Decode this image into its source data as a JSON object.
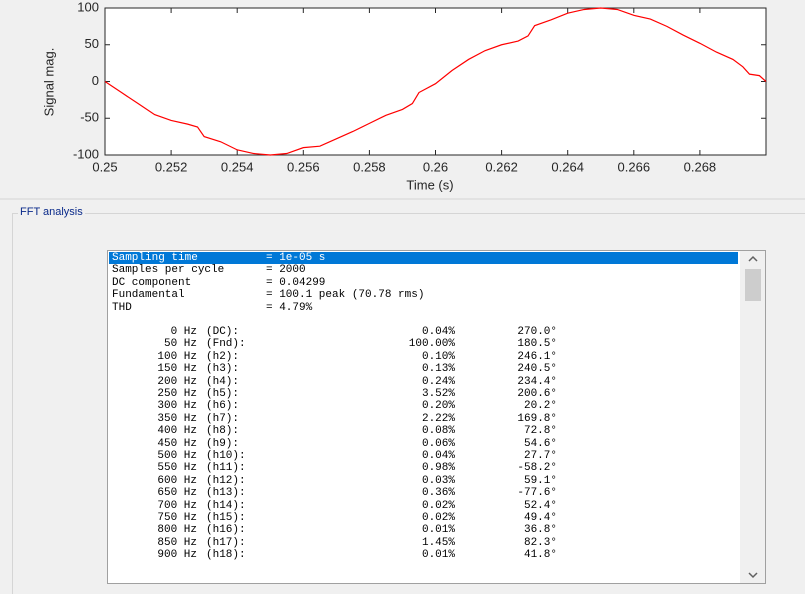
{
  "chart_data": {
    "type": "line",
    "xlabel": "Time (s)",
    "ylabel": "Signal mag.",
    "x": [
      0.25,
      0.2505,
      0.251,
      0.2515,
      0.252,
      0.2525,
      0.2528,
      0.253,
      0.2535,
      0.254,
      0.2545,
      0.255,
      0.2555,
      0.256,
      0.2565,
      0.257,
      0.2575,
      0.258,
      0.2585,
      0.259,
      0.2593,
      0.2595,
      0.26,
      0.2605,
      0.261,
      0.2615,
      0.262,
      0.2625,
      0.2628,
      0.263,
      0.2635,
      0.264,
      0.2645,
      0.265,
      0.2655,
      0.266,
      0.2665,
      0.267,
      0.2675,
      0.268,
      0.2685,
      0.269,
      0.2693,
      0.2695,
      0.2698,
      0.27
    ],
    "series": [
      {
        "color": "#ff0000",
        "values": [
          0,
          -15,
          -30,
          -45,
          -53,
          -58,
          -62,
          -75,
          -82,
          -93,
          -98,
          -100,
          -98,
          -90,
          -88,
          -78,
          -68,
          -57,
          -46,
          -38,
          -30,
          -15,
          -3,
          15,
          30,
          42,
          50,
          55,
          62,
          76,
          84,
          93,
          98,
          100,
          98,
          90,
          85,
          75,
          63,
          52,
          40,
          30,
          20,
          10,
          8,
          0
        ]
      }
    ],
    "xlim": [
      0.25,
      0.27
    ],
    "ylim": [
      -100,
      100
    ],
    "xticks": [
      0.25,
      0.252,
      0.254,
      0.256,
      0.258,
      0.26,
      0.262,
      0.264,
      0.266,
      0.268
    ],
    "yticks": [
      -100,
      -50,
      0,
      50,
      100
    ]
  },
  "panel": {
    "title": "FFT analysis"
  },
  "listbox": {
    "summary": [
      {
        "label": "Sampling time",
        "value": "= 1e-05 s"
      },
      {
        "label": "Samples per cycle",
        "value": "= 2000"
      },
      {
        "label": "DC component",
        "value": "= 0.04299"
      },
      {
        "label": "Fundamental",
        "value": "= 100.1 peak (70.78 rms)"
      },
      {
        "label": "THD",
        "value": "= 4.79%"
      }
    ],
    "harmonics": [
      [
        "0 Hz",
        "(DC):",
        "0.04%",
        "270.0°"
      ],
      [
        "50 Hz",
        "(Fnd):",
        "100.00%",
        "180.5°"
      ],
      [
        "100 Hz",
        "(h2):",
        "0.10%",
        "246.1°"
      ],
      [
        "150 Hz",
        "(h3):",
        "0.13%",
        "240.5°"
      ],
      [
        "200 Hz",
        "(h4):",
        "0.24%",
        "234.4°"
      ],
      [
        "250 Hz",
        "(h5):",
        "3.52%",
        "200.6°"
      ],
      [
        "300 Hz",
        "(h6):",
        "0.20%",
        "20.2°"
      ],
      [
        "350 Hz",
        "(h7):",
        "2.22%",
        "169.8°"
      ],
      [
        "400 Hz",
        "(h8):",
        "0.08%",
        "72.8°"
      ],
      [
        "450 Hz",
        "(h9):",
        "0.06%",
        "54.6°"
      ],
      [
        "500 Hz",
        "(h10):",
        "0.04%",
        "27.7°"
      ],
      [
        "550 Hz",
        "(h11):",
        "0.98%",
        "-58.2°"
      ],
      [
        "600 Hz",
        "(h12):",
        "0.03%",
        "59.1°"
      ],
      [
        "650 Hz",
        "(h13):",
        "0.36%",
        "-77.6°"
      ],
      [
        "700 Hz",
        "(h14):",
        "0.02%",
        "52.4°"
      ],
      [
        "750 Hz",
        "(h15):",
        "0.02%",
        "49.4°"
      ],
      [
        "800 Hz",
        "(h16):",
        "0.01%",
        "36.8°"
      ],
      [
        "850 Hz",
        "(h17):",
        "1.45%",
        "82.3°"
      ],
      [
        "900 Hz",
        "(h18):",
        "0.01%",
        "41.8°"
      ]
    ]
  }
}
